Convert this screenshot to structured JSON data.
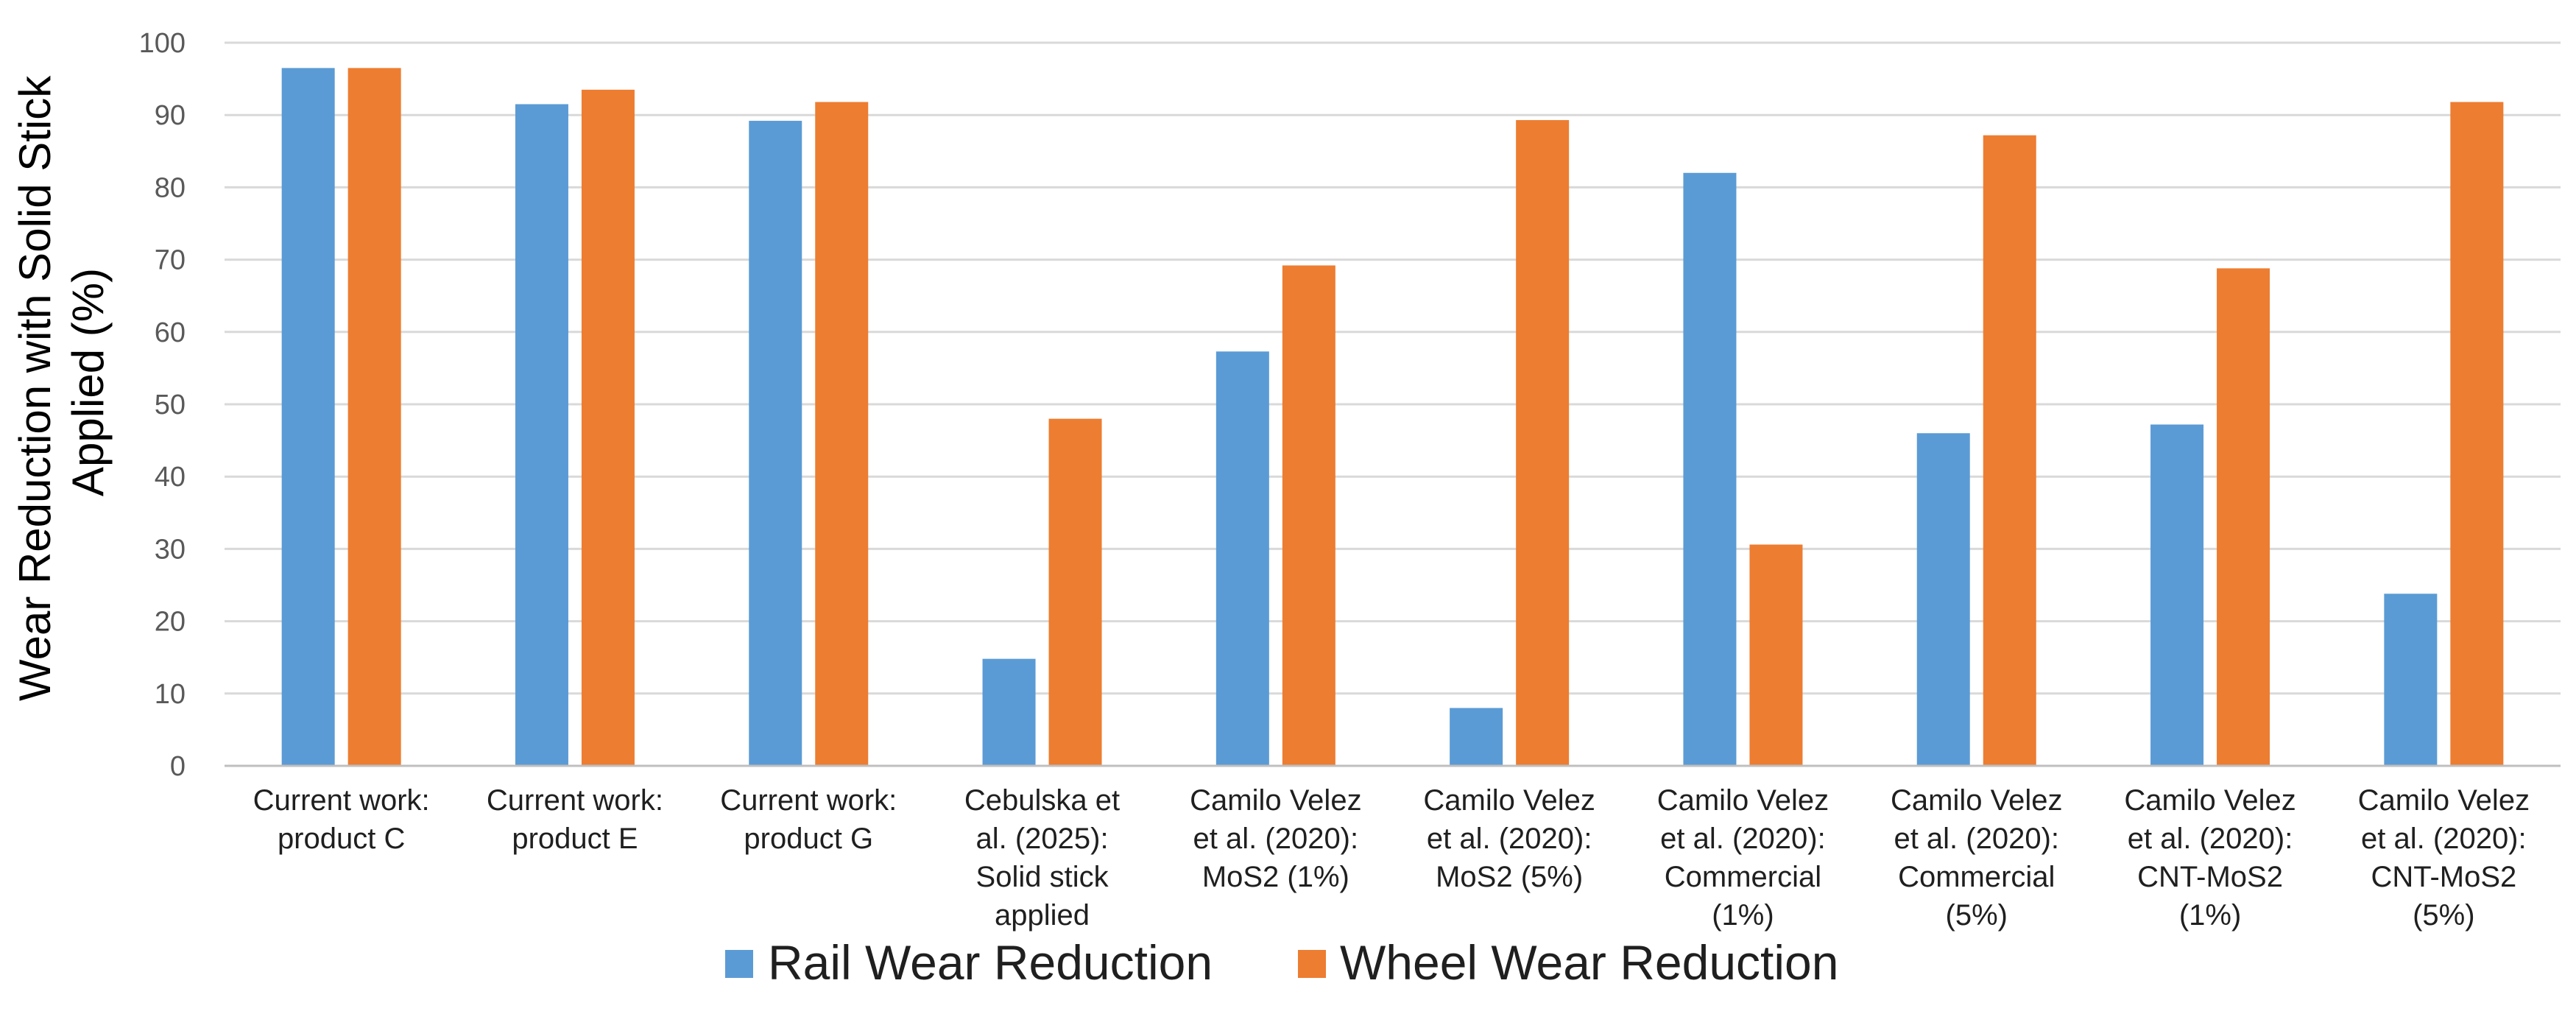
{
  "chart_data": {
    "type": "bar",
    "title": "",
    "xlabel": "",
    "ylabel": [
      "Wear Reduction with Solid Stick",
      "Applied (%)"
    ],
    "ylim": [
      0,
      100
    ],
    "yticks": [
      0,
      10,
      20,
      30,
      40,
      50,
      60,
      70,
      80,
      90,
      100
    ],
    "grid": true,
    "legend_position": "bottom",
    "categories": [
      [
        "Current work:",
        "product C"
      ],
      [
        "Current work:",
        "product E"
      ],
      [
        "Current work:",
        "product G"
      ],
      [
        "Cebulska et",
        "al. (2025):",
        "Solid stick",
        "applied"
      ],
      [
        "Camilo Velez",
        "et al. (2020):",
        "MoS2 (1%)"
      ],
      [
        "Camilo Velez",
        "et al. (2020):",
        "MoS2 (5%)"
      ],
      [
        "Camilo Velez",
        "et al. (2020):",
        "Commercial",
        "(1%)"
      ],
      [
        "Camilo Velez",
        "et al. (2020):",
        "Commercial",
        "(5%)"
      ],
      [
        "Camilo Velez",
        "et al. (2020):",
        "CNT-MoS2",
        "(1%)"
      ],
      [
        "Camilo Velez",
        "et al. (2020):",
        "CNT-MoS2",
        "(5%)"
      ]
    ],
    "series": [
      {
        "name": "Rail Wear Reduction",
        "color": "#5b9bd5",
        "values": [
          96.5,
          91.5,
          89.2,
          14.8,
          57.3,
          8.0,
          82.0,
          46.0,
          47.2,
          23.8
        ]
      },
      {
        "name": "Wheel Wear Reduction",
        "color": "#ed7d31",
        "values": [
          96.5,
          93.5,
          91.8,
          48.0,
          69.2,
          89.3,
          30.6,
          87.2,
          68.8,
          91.8
        ]
      }
    ]
  }
}
